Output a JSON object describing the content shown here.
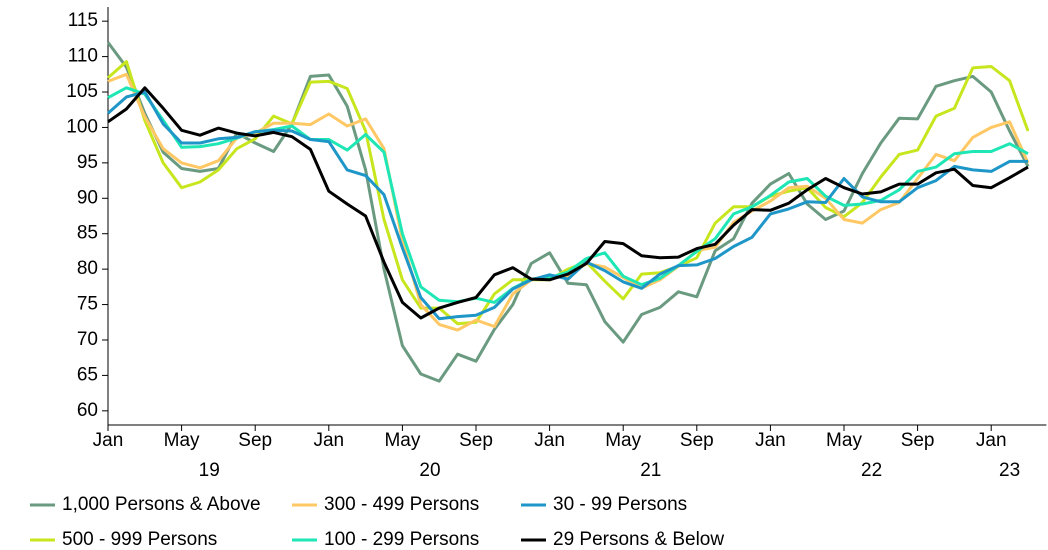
{
  "chart_data": {
    "type": "line",
    "categories": [
      "Jan",
      null,
      null,
      null,
      "May",
      null,
      null,
      null,
      "Sep",
      null,
      null,
      null,
      "Jan",
      null,
      null,
      null,
      "May",
      null,
      null,
      null,
      "Sep",
      null,
      null,
      null,
      "Jan",
      null,
      null,
      null,
      "May",
      null,
      null,
      null,
      "Sep",
      null,
      null,
      null,
      "Jan",
      null,
      null,
      null,
      "May",
      null,
      null,
      null,
      "Sep",
      null,
      null,
      null,
      "Jan",
      null,
      null
    ],
    "years": [
      "19",
      "20",
      "21",
      "22",
      "23"
    ],
    "ylim": [
      58,
      117
    ],
    "yticks": [
      60,
      65,
      70,
      75,
      80,
      85,
      90,
      95,
      100,
      105,
      110,
      115
    ],
    "grid": false,
    "series": [
      {
        "name": "1,000 Persons & Above",
        "color": "#6a9a80",
        "values": [
          112,
          108.5,
          102,
          96.5,
          94.2,
          93.8,
          94.2,
          99.2,
          97.8,
          96.6,
          100.5,
          107.2,
          107.4,
          103,
          94,
          80,
          69.2,
          65.2,
          64.2,
          68,
          67,
          71.5,
          75,
          80.8,
          82.3,
          78,
          77.8,
          72.6,
          69.7,
          73.6,
          74.6,
          76.8,
          76.1,
          82.6,
          84.3,
          89.3,
          92,
          93.5,
          89.2,
          87,
          88.2,
          93.5,
          97.8,
          101.3,
          101.2,
          105.8,
          106.6,
          107.2,
          105,
          99.5,
          94.5
        ]
      },
      {
        "name": "500 - 999 Persons",
        "color": "#c8e61e",
        "values": [
          107,
          109.3,
          101,
          95,
          91.5,
          92.3,
          94,
          97,
          98.4,
          101.6,
          100.5,
          106.4,
          106.5,
          105.5,
          99.5,
          87,
          78.5,
          74.5,
          74.5,
          72.3,
          72.5,
          76.5,
          78.5,
          78.5,
          78.5,
          80,
          81,
          78.3,
          75.8,
          79.3,
          79.5,
          80.4,
          81.6,
          86.5,
          88.8,
          88.8,
          90.3,
          91,
          91.5,
          88.7,
          87.4,
          89.4,
          93,
          96.2,
          96.8,
          101.6,
          102.7,
          108.4,
          108.6,
          106.6,
          99.5
        ]
      },
      {
        "name": "300 - 499 Persons",
        "color": "#ffc864",
        "values": [
          106.5,
          107.5,
          101.5,
          97,
          95,
          94.3,
          95.3,
          98.5,
          99.2,
          100.6,
          100.6,
          100.4,
          101.9,
          100.2,
          101.2,
          97,
          84,
          75,
          72.2,
          71.4,
          72.8,
          71.9,
          76.5,
          78.5,
          79,
          79,
          80.8,
          80.3,
          78.8,
          77.3,
          78.5,
          80.4,
          82.6,
          83.1,
          86.6,
          88.2,
          89.6,
          91.5,
          91.7,
          90,
          87,
          86.5,
          88.4,
          89.4,
          92.8,
          96.2,
          95.3,
          98.6,
          100,
          100.8,
          95
        ]
      },
      {
        "name": "100 - 299 Persons",
        "color": "#1ee6b4",
        "values": [
          104.2,
          105.6,
          104.7,
          101,
          97.2,
          97.3,
          97.7,
          98.5,
          99.4,
          99.7,
          100.2,
          98.3,
          98.3,
          96.8,
          99,
          96.5,
          85,
          77.5,
          75.6,
          75.4,
          75.9,
          75.3,
          77.3,
          78.6,
          78.8,
          79.6,
          81.5,
          82.3,
          79,
          77.8,
          78.7,
          80.5,
          82.5,
          84.3,
          87.8,
          88.8,
          90.4,
          92.3,
          92.8,
          90.3,
          89,
          89.2,
          89.7,
          91.2,
          93.8,
          94.4,
          96.3,
          96.6,
          96.6,
          97.7,
          96.3
        ]
      },
      {
        "name": "30 - 99 Persons",
        "color": "#1e96c8",
        "values": [
          102,
          104.3,
          105,
          100.5,
          97.8,
          97.8,
          98.4,
          98.6,
          99.4,
          99.6,
          99.5,
          98.3,
          98,
          94,
          93.2,
          90.5,
          83,
          76,
          73,
          73.3,
          73.5,
          74.6,
          77.2,
          78.5,
          79.2,
          78.6,
          81,
          79.8,
          78.2,
          77.3,
          79.3,
          80.5,
          80.6,
          81.5,
          83.2,
          84.5,
          87.8,
          88.5,
          89.5,
          89.4,
          92.8,
          90.2,
          89.5,
          89.5,
          91.5,
          92.5,
          94.5,
          94,
          93.8,
          95.2,
          95.2
        ]
      },
      {
        "name": "29 Persons & Below",
        "color": "#000000",
        "values": [
          100.8,
          102.6,
          105.6,
          102.7,
          99.6,
          98.9,
          99.9,
          99.2,
          98.8,
          99.3,
          98.7,
          96.9,
          91,
          89.2,
          87.5,
          81,
          75.3,
          73.1,
          74.5,
          75.3,
          76,
          79.2,
          80.2,
          78.6,
          78.5,
          79.3,
          80.8,
          83.9,
          83.6,
          81.9,
          81.6,
          81.7,
          82.9,
          83.5,
          86.2,
          88.4,
          88.3,
          89.3,
          91.2,
          92.8,
          91.5,
          90.6,
          90.9,
          92,
          92,
          93.6,
          94.1,
          91.8,
          91.5,
          92.9,
          94.4
        ]
      }
    ],
    "legend": "bottom"
  }
}
